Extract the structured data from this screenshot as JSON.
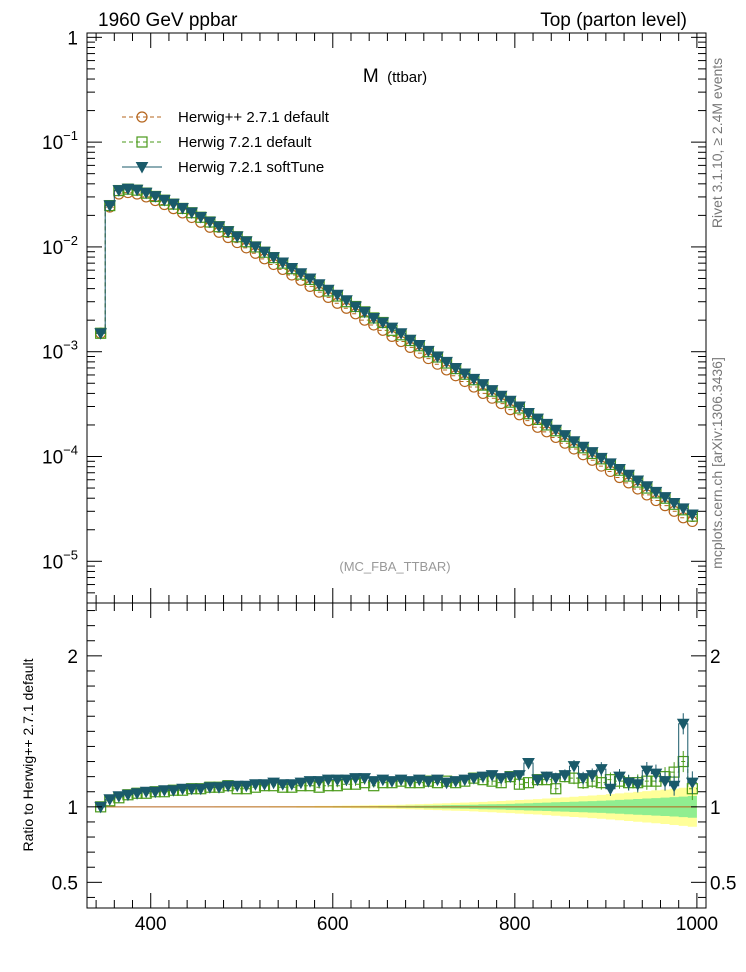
{
  "header": {
    "left": "1960 GeV ppbar",
    "right": "Top (parton level)"
  },
  "side_labels": {
    "rivet": "Rivet 3.1.10, ≥ 2.4M events",
    "mcplots": "mcplots.cern.ch [arXiv:1306.3436]"
  },
  "chart_data": [
    {
      "type": "line",
      "title": "M",
      "title_suffix": "(ttbar)",
      "watermark": "(MC_FBA_TTBAR)",
      "xlim": [
        330,
        1010
      ],
      "ylim": [
        4e-06,
        1.1
      ],
      "yscale": "log",
      "xticks": [
        "400",
        "600",
        "800",
        "1000"
      ],
      "ytick_labels": [
        {
          "v": 1,
          "m": "1",
          "e": ""
        },
        {
          "v": 0.1,
          "m": "10",
          "e": "−1"
        },
        {
          "v": 0.01,
          "m": "10",
          "e": "−2"
        },
        {
          "v": 0.001,
          "m": "10",
          "e": "−3"
        },
        {
          "v": 0.0001,
          "m": "10",
          "e": "−4"
        },
        {
          "v": 1e-05,
          "m": "10",
          "e": "−5"
        }
      ],
      "legend_position": "top-left",
      "x": [
        345,
        355,
        365,
        375,
        385,
        395,
        405,
        415,
        425,
        435,
        445,
        455,
        465,
        475,
        485,
        495,
        505,
        515,
        525,
        535,
        545,
        555,
        565,
        575,
        585,
        595,
        605,
        615,
        625,
        635,
        645,
        655,
        665,
        675,
        685,
        695,
        705,
        715,
        725,
        735,
        745,
        755,
        765,
        775,
        785,
        795,
        805,
        815,
        825,
        835,
        845,
        855,
        865,
        875,
        885,
        895,
        905,
        915,
        925,
        935,
        945,
        955,
        965,
        975,
        985,
        995
      ],
      "series": [
        {
          "name": "Herwig++ 2.7.1 default",
          "color": "#b5651d",
          "marker": "circle",
          "values": [
            0.0015,
            0.024,
            0.032,
            0.033,
            0.032,
            0.03,
            0.0277,
            0.0254,
            0.0232,
            0.0211,
            0.0191,
            0.0172,
            0.0154,
            0.0138,
            0.0123,
            0.011,
            0.0098,
            0.0087,
            0.0077,
            0.0068,
            0.0061,
            0.0054,
            0.0048,
            0.0042,
            0.0037,
            0.0033,
            0.0029,
            0.0026,
            0.0023,
            0.002,
            0.0018,
            0.0016,
            0.0014,
            0.00125,
            0.0011,
            0.00097,
            0.00086,
            0.00076,
            0.00067,
            0.00059,
            0.00052,
            0.00046,
            0.0004,
            0.00036,
            0.00032,
            0.00028,
            0.00025,
            0.00022,
            0.00019,
            0.000172,
            0.000152,
            0.000134,
            0.000118,
            0.000104,
            9.2e-05,
            8.1e-05,
            7.2e-05,
            6.3e-05,
            5.6e-05,
            4.9e-05,
            4.3e-05,
            3.8e-05,
            3.4e-05,
            3e-05,
            2.6e-05,
            2.4e-05
          ]
        },
        {
          "name": "Herwig 7.2.1 default",
          "color": "#4a9a1a",
          "marker": "square",
          "values": [
            0.0015,
            0.0248,
            0.0345,
            0.0356,
            0.0348,
            0.0326,
            0.0303,
            0.0279,
            0.0256,
            0.0233,
            0.0212,
            0.0192,
            0.0173,
            0.0156,
            0.014,
            0.0125,
            0.0112,
            0.01,
            0.0089,
            0.0079,
            0.007,
            0.0062,
            0.0055,
            0.0049,
            0.0043,
            0.0038,
            0.0034,
            0.003,
            0.0027,
            0.0024,
            0.0021,
            0.0019,
            0.0016,
            0.00145,
            0.00128,
            0.00114,
            0.001,
            0.00089,
            0.00078,
            0.00069,
            0.00061,
            0.00054,
            0.00048,
            0.00042,
            0.00037,
            0.00033,
            0.00029,
            0.000256,
            0.000226,
            0.0002,
            0.000176,
            0.000156,
            0.000137,
            0.000121,
            0.000107,
            9.5e-05,
            8.4e-05,
            7.4e-05,
            6.5e-05,
            5.7e-05,
            5e-05,
            4.5e-05,
            4e-05,
            3.5e-05,
            3.1e-05,
            2.7e-05
          ]
        },
        {
          "name": "Herwig 7.2.1 softTune",
          "color": "#1a5a6a",
          "marker": "triangle-down",
          "values": [
            0.0015,
            0.0249,
            0.0348,
            0.0359,
            0.0351,
            0.0329,
            0.0305,
            0.0281,
            0.0258,
            0.0235,
            0.0213,
            0.0193,
            0.0174,
            0.0157,
            0.0141,
            0.0126,
            0.0113,
            0.0101,
            0.009,
            0.008,
            0.0071,
            0.0063,
            0.0056,
            0.005,
            0.0044,
            0.0039,
            0.0035,
            0.0031,
            0.0027,
            0.0024,
            0.0021,
            0.0019,
            0.0017,
            0.0015,
            0.0013,
            0.00116,
            0.00102,
            0.0009,
            0.0008,
            0.0007,
            0.00062,
            0.00055,
            0.00049,
            0.00043,
            0.00038,
            0.00034,
            0.0003,
            0.00026,
            0.00023,
            0.000205,
            0.00018,
            0.00016,
            0.00014,
            0.000124,
            0.00011,
            9.7e-05,
            8.6e-05,
            7.6e-05,
            6.7e-05,
            5.9e-05,
            5.2e-05,
            4.6e-05,
            4.1e-05,
            3.6e-05,
            3.2e-05,
            2.8e-05
          ]
        }
      ]
    },
    {
      "type": "line",
      "ylabel": "Ratio to Herwig++ 2.7.1 default",
      "xlim": [
        330,
        1010
      ],
      "ylim": [
        0.33,
        2.35
      ],
      "xticks": [
        "400",
        "600",
        "800",
        "1000"
      ],
      "yticks": [
        "0.5",
        "1",
        "2"
      ],
      "reference_bands": {
        "green_halfwidth": [
          0.001,
          0.001,
          0.001,
          0.001,
          0.001,
          0.001,
          0.001,
          0.001,
          0.001,
          0.001,
          0.001,
          0.001,
          0.001,
          0.001,
          0.001,
          0.001,
          0.001,
          0.001,
          0.001,
          0.001,
          0.001,
          0.001,
          0.002,
          0.002,
          0.002,
          0.002,
          0.003,
          0.003,
          0.003,
          0.004,
          0.004,
          0.005,
          0.005,
          0.006,
          0.007,
          0.008,
          0.009,
          0.01,
          0.011,
          0.012,
          0.013,
          0.014,
          0.016,
          0.017,
          0.018,
          0.02,
          0.022,
          0.024,
          0.026,
          0.028,
          0.03,
          0.032,
          0.034,
          0.036,
          0.038,
          0.04,
          0.043,
          0.046,
          0.049,
          0.052,
          0.055,
          0.058,
          0.061,
          0.064,
          0.068,
          0.072
        ],
        "yellow_halfwidth": [
          0.002,
          0.002,
          0.002,
          0.002,
          0.002,
          0.002,
          0.002,
          0.002,
          0.002,
          0.002,
          0.002,
          0.002,
          0.002,
          0.003,
          0.003,
          0.003,
          0.003,
          0.003,
          0.003,
          0.004,
          0.004,
          0.004,
          0.005,
          0.005,
          0.006,
          0.006,
          0.007,
          0.008,
          0.009,
          0.01,
          0.011,
          0.012,
          0.013,
          0.014,
          0.016,
          0.018,
          0.02,
          0.022,
          0.024,
          0.026,
          0.028,
          0.03,
          0.033,
          0.036,
          0.039,
          0.042,
          0.045,
          0.048,
          0.051,
          0.055,
          0.059,
          0.063,
          0.067,
          0.071,
          0.075,
          0.079,
          0.084,
          0.089,
          0.094,
          0.099,
          0.104,
          0.109,
          0.114,
          0.12,
          0.126,
          0.132
        ]
      },
      "series": [
        {
          "name": "Herwig 7.2.1 default",
          "color": "#4a9a1a",
          "marker": "square",
          "values": [
            1.0,
            1.04,
            1.06,
            1.08,
            1.09,
            1.09,
            1.1,
            1.1,
            1.11,
            1.11,
            1.12,
            1.12,
            1.13,
            1.13,
            1.14,
            1.12,
            1.12,
            1.13,
            1.14,
            1.14,
            1.13,
            1.13,
            1.14,
            1.14,
            1.13,
            1.14,
            1.14,
            1.15,
            1.15,
            1.16,
            1.14,
            1.16,
            1.16,
            1.17,
            1.16,
            1.16,
            1.17,
            1.16,
            1.17,
            1.16,
            1.17,
            1.19,
            1.18,
            1.17,
            1.16,
            1.2,
            1.15,
            1.16,
            1.18,
            1.18,
            1.12,
            1.2,
            1.19,
            1.16,
            1.17,
            1.16,
            1.18,
            1.17,
            1.16,
            1.16,
            1.17,
            1.17,
            1.2,
            1.23,
            1.3,
            1.12
          ],
          "errors": [
            0.005,
            0.005,
            0.005,
            0.005,
            0.005,
            0.005,
            0.005,
            0.005,
            0.005,
            0.005,
            0.005,
            0.005,
            0.005,
            0.006,
            0.006,
            0.006,
            0.006,
            0.007,
            0.007,
            0.007,
            0.008,
            0.008,
            0.008,
            0.009,
            0.009,
            0.01,
            0.01,
            0.011,
            0.011,
            0.012,
            0.012,
            0.013,
            0.014,
            0.015,
            0.016,
            0.017,
            0.018,
            0.019,
            0.02,
            0.021,
            0.022,
            0.023,
            0.024,
            0.026,
            0.027,
            0.028,
            0.03,
            0.031,
            0.033,
            0.034,
            0.036,
            0.038,
            0.04,
            0.042,
            0.044,
            0.046,
            0.048,
            0.05,
            0.052,
            0.055,
            0.057,
            0.06,
            0.063,
            0.066,
            0.07,
            0.075
          ]
        },
        {
          "name": "Herwig 7.2.1 softTune",
          "color": "#1a5a6a",
          "marker": "triangle-down",
          "values": [
            1.0,
            1.05,
            1.07,
            1.08,
            1.09,
            1.1,
            1.1,
            1.11,
            1.11,
            1.12,
            1.12,
            1.12,
            1.13,
            1.13,
            1.14,
            1.14,
            1.14,
            1.15,
            1.15,
            1.16,
            1.15,
            1.15,
            1.16,
            1.17,
            1.17,
            1.18,
            1.18,
            1.18,
            1.19,
            1.19,
            1.17,
            1.18,
            1.17,
            1.18,
            1.17,
            1.18,
            1.17,
            1.18,
            1.16,
            1.17,
            1.18,
            1.19,
            1.2,
            1.21,
            1.19,
            1.2,
            1.21,
            1.29,
            1.18,
            1.2,
            1.19,
            1.21,
            1.27,
            1.19,
            1.21,
            1.25,
            1.12,
            1.2,
            1.16,
            1.15,
            1.24,
            1.22,
            1.17,
            1.14,
            1.55,
            1.16
          ],
          "errors": [
            0.005,
            0.005,
            0.005,
            0.005,
            0.005,
            0.005,
            0.005,
            0.005,
            0.005,
            0.005,
            0.005,
            0.005,
            0.005,
            0.006,
            0.006,
            0.006,
            0.006,
            0.007,
            0.007,
            0.007,
            0.008,
            0.008,
            0.008,
            0.009,
            0.009,
            0.01,
            0.01,
            0.011,
            0.011,
            0.012,
            0.012,
            0.013,
            0.014,
            0.015,
            0.016,
            0.017,
            0.018,
            0.019,
            0.02,
            0.021,
            0.022,
            0.023,
            0.024,
            0.026,
            0.027,
            0.028,
            0.03,
            0.031,
            0.033,
            0.034,
            0.036,
            0.038,
            0.04,
            0.042,
            0.044,
            0.046,
            0.048,
            0.05,
            0.052,
            0.055,
            0.057,
            0.06,
            0.063,
            0.066,
            0.07,
            0.075
          ]
        }
      ]
    }
  ]
}
